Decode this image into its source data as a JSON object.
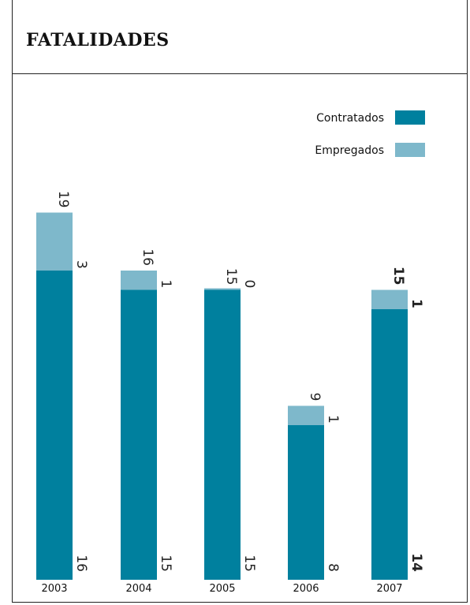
{
  "title": "FATALIDADES",
  "chart_data": {
    "type": "bar",
    "stacked": true,
    "categories": [
      "2003",
      "2004",
      "2005",
      "2006",
      "2007"
    ],
    "series": [
      {
        "name": "Contratados",
        "values": [
          16,
          15,
          15,
          8,
          14
        ],
        "color": "#00809e"
      },
      {
        "name": "Empregados",
        "values": [
          3,
          1,
          0,
          1,
          1
        ],
        "color": "#7eb8cb"
      }
    ],
    "totals": [
      19,
      16,
      15,
      9,
      15
    ],
    "emphasized_category": "2007",
    "legend_position": "top-right",
    "grid": false
  }
}
